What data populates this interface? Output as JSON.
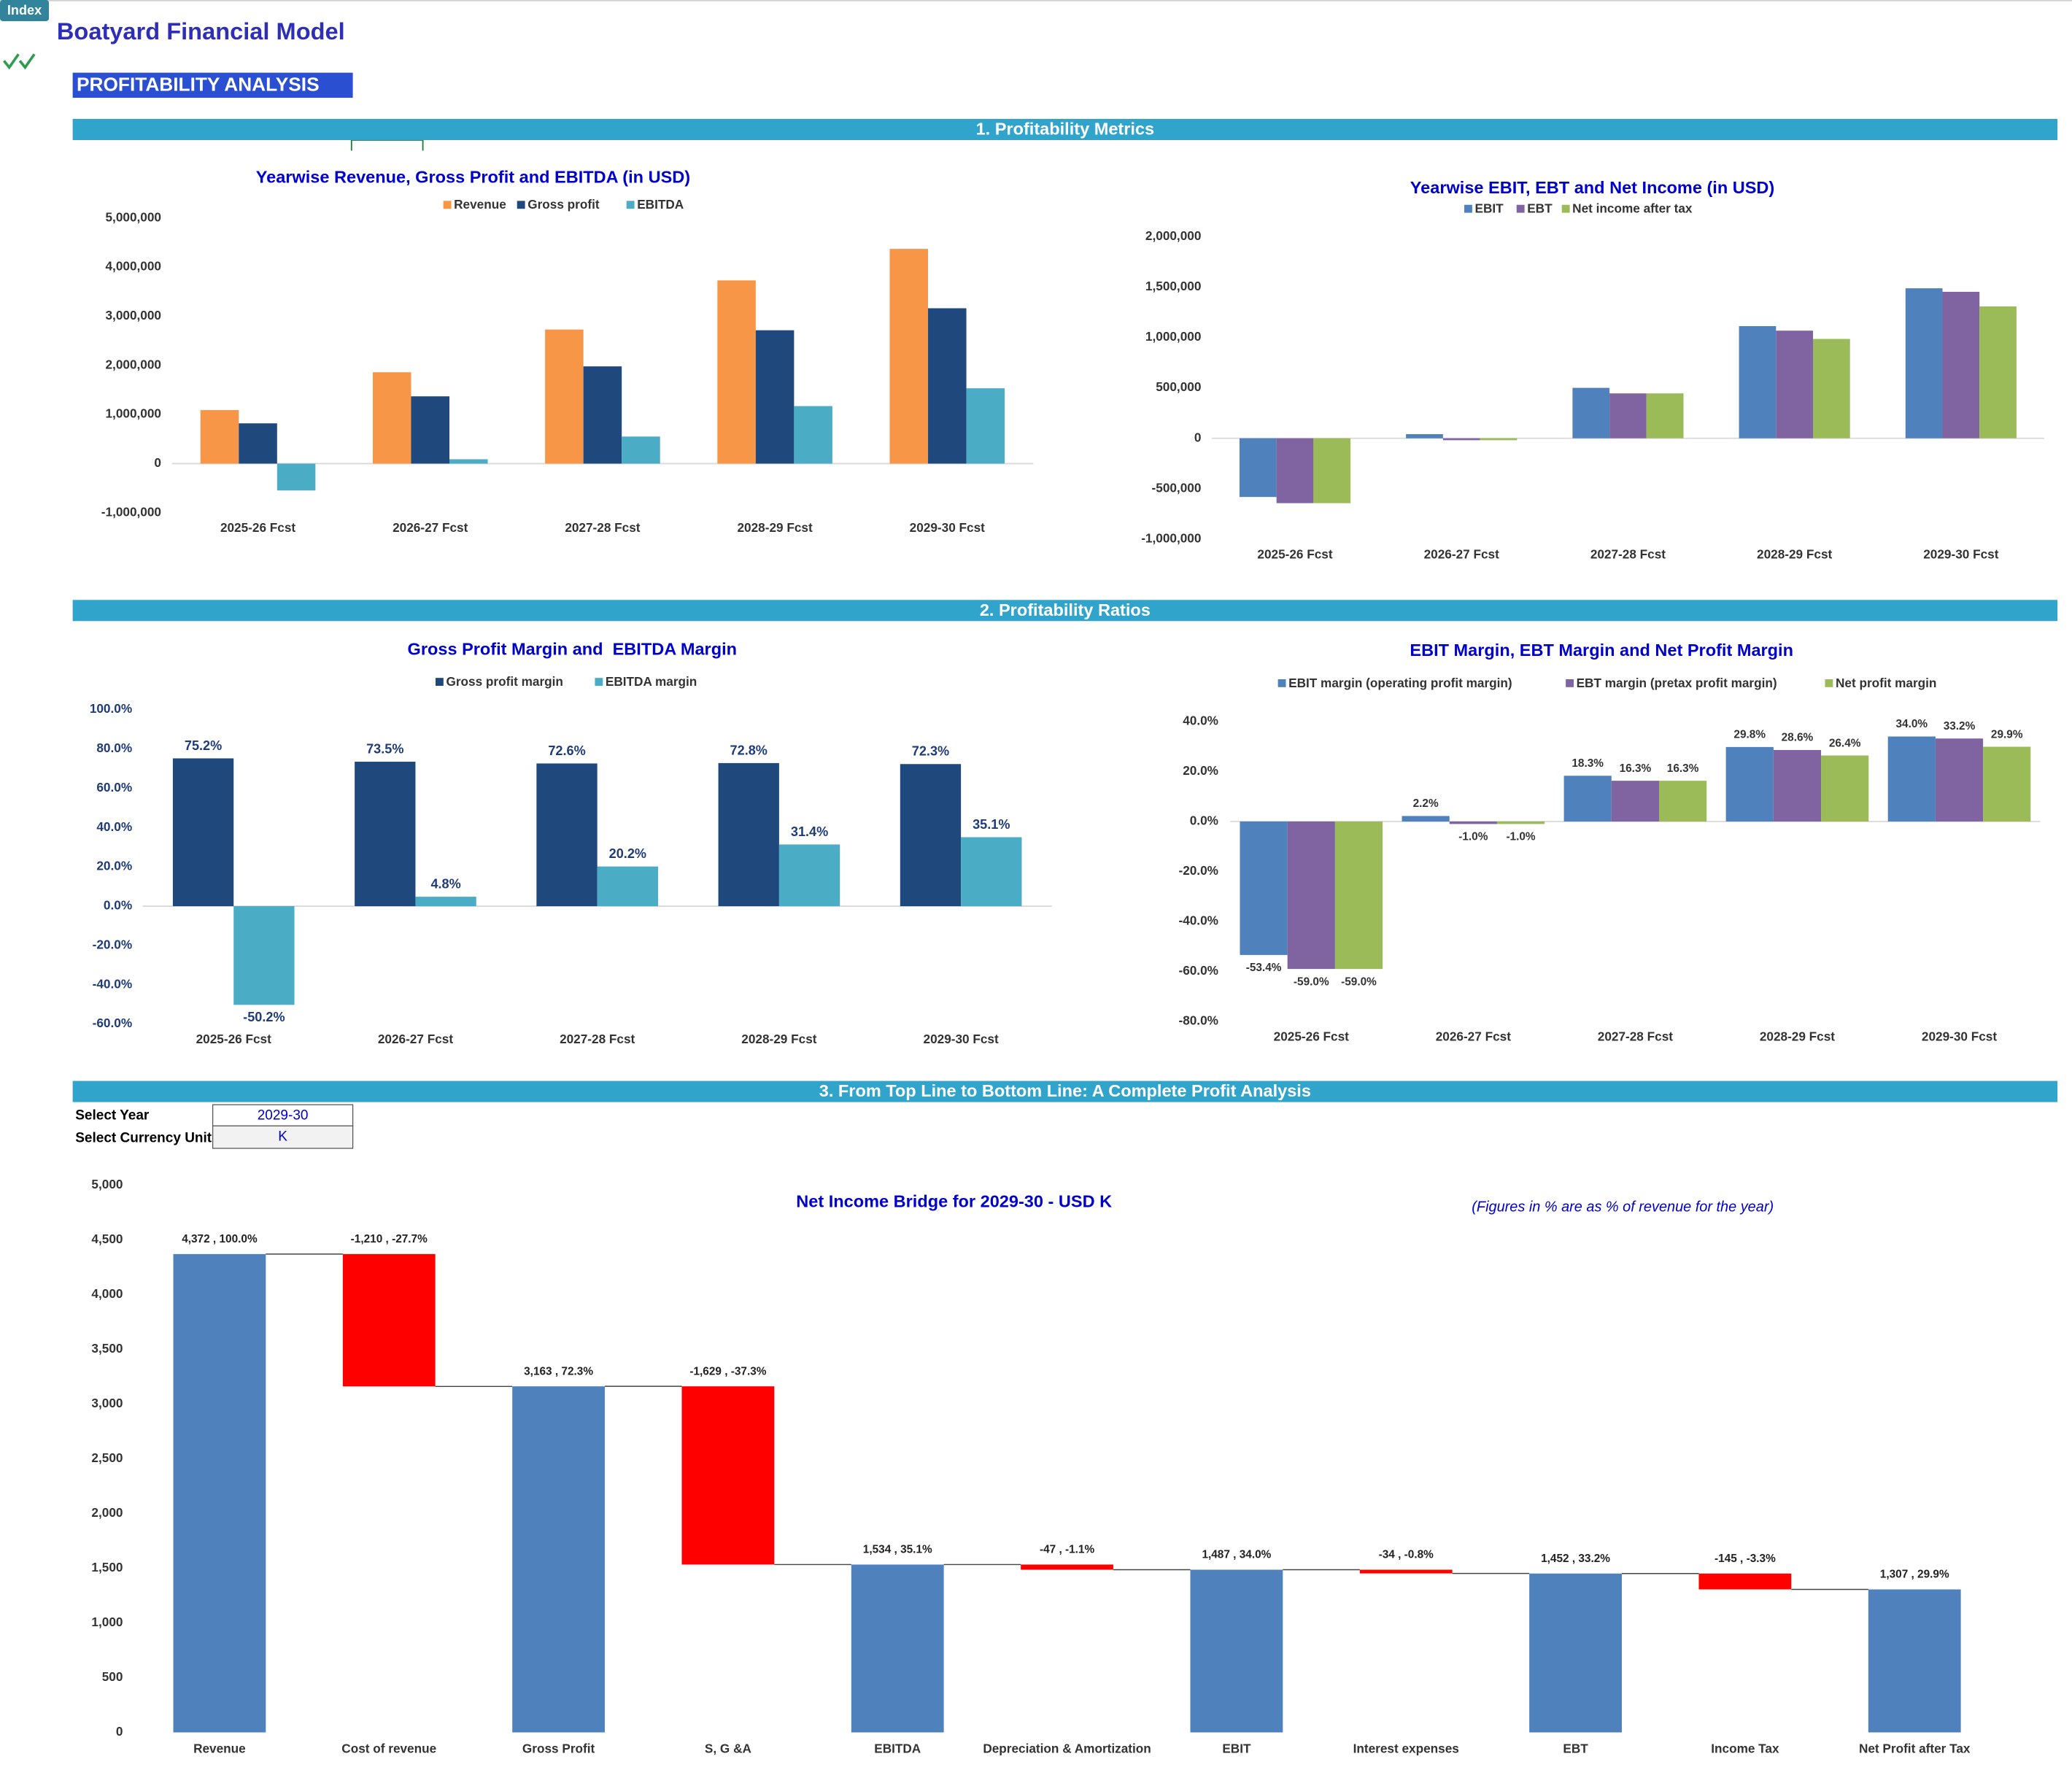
{
  "header": {
    "index_button": "Index",
    "title": "Boatyard Financial Model",
    "page": "PROFITABILITY ANALYSIS"
  },
  "sections": [
    "1. Profitability Metrics",
    "2. Profitability Ratios",
    "3. From Top Line to Bottom Line: A Complete Profit Analysis"
  ],
  "selectors": [
    {
      "label": "Select Year",
      "value": "2029-30"
    },
    {
      "label": "Select Currency Unit",
      "value": "K"
    }
  ],
  "chart_data": [
    {
      "type": "bar",
      "title": "Yearwise Revenue, Gross Profit and EBITDA (in USD)",
      "categories": [
        "2025-26 Fcst",
        "2026-27 Fcst",
        "2027-28 Fcst",
        "2028-29 Fcst",
        "2029-30 Fcst"
      ],
      "series": [
        {
          "name": "Revenue",
          "color": "#f79646",
          "values": [
            1090000,
            1860000,
            2730000,
            3730000,
            4372000
          ]
        },
        {
          "name": "Gross profit",
          "color": "#1f497d",
          "values": [
            820000,
            1370000,
            1980000,
            2715000,
            3163000
          ]
        },
        {
          "name": "EBITDA",
          "color": "#4bacc6",
          "values": [
            -547000,
            89000,
            551000,
            1171000,
            1534000
          ]
        }
      ],
      "ylim": [
        -1000000,
        5000000
      ],
      "yticks": [
        {
          "value": -1000000,
          "label": "-1,000,000"
        },
        0,
        {
          "value": 1000000,
          "label": "1,000,000"
        },
        {
          "value": 2000000,
          "label": "2,000,000"
        },
        {
          "value": 3000000,
          "label": "3,000,000"
        },
        {
          "value": 4000000,
          "label": "4,000,000"
        },
        {
          "value": 5000000,
          "label": "5,000,000"
        }
      ],
      "grid": false,
      "legend": "top"
    },
    {
      "type": "bar",
      "title": "Yearwise EBIT, EBT and Net Income (in USD)",
      "categories": [
        "2025-26 Fcst",
        "2026-27 Fcst",
        "2027-28 Fcst",
        "2028-29 Fcst",
        "2029-30 Fcst"
      ],
      "series": [
        {
          "name": "EBIT",
          "color": "#4f81bd",
          "values": [
            -582000,
            41000,
            500000,
            1112000,
            1487000
          ]
        },
        {
          "name": "EBT",
          "color": "#8064a2",
          "values": [
            -643000,
            -19000,
            445000,
            1067000,
            1452000
          ]
        },
        {
          "name": "Net income after tax",
          "color": "#9bbb59",
          "values": [
            -643000,
            -19000,
            445000,
            985000,
            1307000
          ]
        }
      ],
      "ylim": [
        -1000000,
        2000000
      ],
      "yticks": [
        {
          "value": -1000000,
          "label": "-1,000,000"
        },
        {
          "value": -500000,
          "label": "-500,000"
        },
        0,
        {
          "value": 500000,
          "label": "500,000"
        },
        {
          "value": 1000000,
          "label": "1,000,000"
        },
        {
          "value": 1500000,
          "label": "1,500,000"
        },
        {
          "value": 2000000,
          "label": "2,000,000"
        }
      ],
      "grid": false,
      "legend": "top"
    },
    {
      "type": "bar",
      "title": "Gross Profit Margin and  EBITDA Margin",
      "categories": [
        "2025-26 Fcst",
        "2026-27 Fcst",
        "2027-28 Fcst",
        "2028-29 Fcst",
        "2029-30 Fcst"
      ],
      "series": [
        {
          "name": "Gross profit margin",
          "color": "#1f497d",
          "values": [
            75.2,
            73.5,
            72.6,
            72.8,
            72.3
          ],
          "value_labels": [
            "75.2%",
            "73.5%",
            "72.6%",
            "72.8%",
            "72.3%"
          ]
        },
        {
          "name": "EBITDA margin",
          "color": "#4bacc6",
          "values": [
            -50.2,
            4.8,
            20.2,
            31.4,
            35.1
          ],
          "value_labels": [
            "-50.2%",
            "4.8%",
            "20.2%",
            "31.4%",
            "35.1%"
          ]
        }
      ],
      "ylim": [
        -60,
        100
      ],
      "yticks": [
        {
          "value": -60,
          "label": "-60.0%"
        },
        {
          "value": -40,
          "label": "-40.0%"
        },
        {
          "value": -20,
          "label": "-20.0%"
        },
        {
          "value": 0,
          "label": "0.0%"
        },
        {
          "value": 20,
          "label": "20.0%"
        },
        {
          "value": 40,
          "label": "40.0%"
        },
        {
          "value": 60,
          "label": "60.0%"
        },
        {
          "value": 80,
          "label": "80.0%"
        },
        {
          "value": 100,
          "label": "100.0%"
        }
      ],
      "grid": false,
      "legend": "top"
    },
    {
      "type": "bar",
      "title": "EBIT Margin, EBT Margin and Net Profit Margin",
      "categories": [
        "2025-26 Fcst",
        "2026-27 Fcst",
        "2027-28 Fcst",
        "2028-29 Fcst",
        "2029-30 Fcst"
      ],
      "series": [
        {
          "name": "EBIT margin (operating profit margin)",
          "color": "#4f81bd",
          "values": [
            -53.4,
            2.2,
            18.3,
            29.8,
            34.0
          ],
          "value_labels": [
            "-53.4%",
            "2.2%",
            "18.3%",
            "29.8%",
            "34.0%"
          ]
        },
        {
          "name": "EBT margin (pretax profit margin)",
          "color": "#8064a2",
          "values": [
            -59.0,
            -1.0,
            16.3,
            28.6,
            33.2
          ],
          "value_labels": [
            "-59.0%",
            "-1.0%",
            "16.3%",
            "28.6%",
            "33.2%"
          ]
        },
        {
          "name": "Net profit margin",
          "color": "#9bbb59",
          "values": [
            -59.0,
            -1.0,
            16.3,
            26.4,
            29.9
          ],
          "value_labels": [
            "-59.0%",
            "-1.0%",
            "16.3%",
            "26.4%",
            "29.9%"
          ]
        }
      ],
      "ylim": [
        -80,
        40
      ],
      "yticks": [
        {
          "value": -80,
          "label": "-80.0%"
        },
        {
          "value": -60,
          "label": "-60.0%"
        },
        {
          "value": -40,
          "label": "-40.0%"
        },
        {
          "value": -20,
          "label": "-20.0%"
        },
        {
          "value": 0,
          "label": "0.0%"
        },
        {
          "value": 20,
          "label": "20.0%"
        },
        {
          "value": 40,
          "label": "40.0%"
        }
      ],
      "grid": false,
      "legend": "top"
    },
    {
      "type": "waterfall",
      "title": "Net Income Bridge for 2029-30 - USD K",
      "note": "(Figures in % are as % of revenue for the year)",
      "categories": [
        "Revenue",
        "Cost of revenue",
        "Gross Profit",
        "S, G &A",
        "EBITDA",
        "Depreciation & Amortization",
        "EBIT",
        "Interest expenses",
        "EBT",
        "Income Tax",
        "Net Profit after Tax"
      ],
      "values": [
        4372,
        -1210,
        3163,
        -1629,
        1534,
        -47,
        1487,
        -34,
        1452,
        -145,
        1307
      ],
      "value_labels": [
        "4,372 , 100.0%",
        "-1,210 , -27.7%",
        "3,163 , 72.3%",
        "-1,629 , -37.3%",
        "1,534 , 35.1%",
        "-47 , -1.1%",
        "1,487 , 34.0%",
        "-34 , -0.8%",
        "1,452 , 33.2%",
        "-145 , -3.3%",
        "1,307 , 29.9%"
      ],
      "is_total": [
        true,
        false,
        true,
        false,
        true,
        false,
        true,
        false,
        true,
        false,
        true
      ],
      "total_color": "#4f81bd",
      "decrease_color": "#ff0000",
      "ylim": [
        0,
        5000
      ],
      "yticks": [
        0,
        500,
        {
          "value": 1000,
          "label": "1,000"
        },
        {
          "value": 1500,
          "label": "1,500"
        },
        {
          "value": 2000,
          "label": "2,000"
        },
        {
          "value": 2500,
          "label": "2,500"
        },
        {
          "value": 3000,
          "label": "3,000"
        },
        {
          "value": 3500,
          "label": "3,500"
        },
        {
          "value": 4000,
          "label": "4,000"
        },
        {
          "value": 4500,
          "label": "4,500"
        },
        {
          "value": 5000,
          "label": "5,000"
        }
      ],
      "grid": false
    }
  ]
}
